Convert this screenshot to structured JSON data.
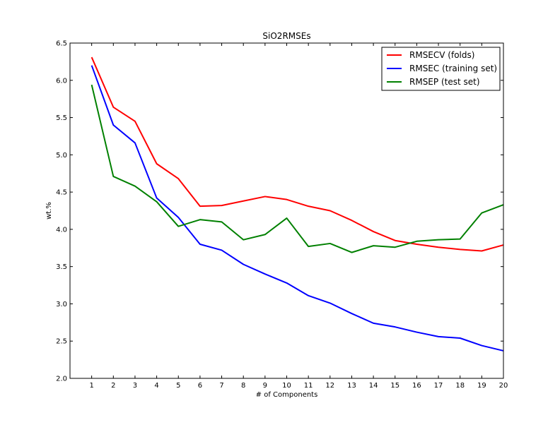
{
  "chart_data": {
    "type": "line",
    "title": "SiO2RMSEs",
    "xlabel": "# of Components",
    "ylabel": "wt.%",
    "xlim": [
      0,
      20
    ],
    "ylim": [
      2.0,
      6.5
    ],
    "x_ticks": [
      1,
      2,
      3,
      4,
      5,
      6,
      7,
      8,
      9,
      10,
      11,
      12,
      13,
      14,
      15,
      16,
      17,
      18,
      19,
      20
    ],
    "y_ticks": [
      2.0,
      2.5,
      3.0,
      3.5,
      4.0,
      4.5,
      5.0,
      5.5,
      6.0,
      6.5
    ],
    "y_tick_labels": [
      "2.0",
      "2.5",
      "3.0",
      "3.5",
      "4.0",
      "4.5",
      "5.0",
      "5.5",
      "6.0",
      "6.5"
    ],
    "grid": false,
    "legend_position": "top-right",
    "x": [
      1,
      2,
      3,
      4,
      5,
      6,
      7,
      8,
      9,
      10,
      11,
      12,
      13,
      14,
      15,
      16,
      17,
      18,
      19,
      20
    ],
    "series": [
      {
        "name": "RMSECV (folds)",
        "color": "#ff0000",
        "values": [
          6.31,
          5.64,
          5.45,
          4.88,
          4.68,
          4.31,
          4.32,
          4.38,
          4.44,
          4.4,
          4.31,
          4.25,
          4.12,
          3.97,
          3.85,
          3.8,
          3.76,
          3.73,
          3.71,
          3.79
        ]
      },
      {
        "name": "RMSEC (training set)",
        "color": "#0000ff",
        "values": [
          6.2,
          5.4,
          5.16,
          4.42,
          4.16,
          3.8,
          3.72,
          3.53,
          3.4,
          3.28,
          3.11,
          3.01,
          2.87,
          2.74,
          2.69,
          2.62,
          2.56,
          2.54,
          2.44,
          2.37
        ]
      },
      {
        "name": "RMSEP (test set)",
        "color": "#008000",
        "values": [
          5.94,
          4.71,
          4.58,
          4.37,
          4.04,
          4.13,
          4.1,
          3.86,
          3.93,
          4.15,
          3.77,
          3.81,
          3.69,
          3.78,
          3.76,
          3.84,
          3.86,
          3.87,
          4.22,
          4.33
        ]
      }
    ]
  }
}
